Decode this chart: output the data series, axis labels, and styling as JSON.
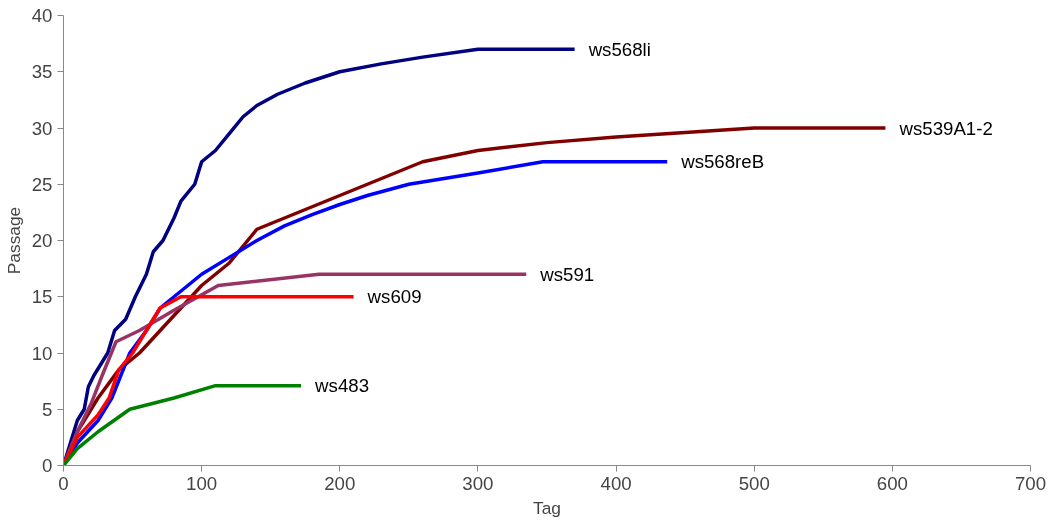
{
  "chart_data": {
    "type": "line",
    "xlabel": "Tag",
    "ylabel": "Passage",
    "xlim": [
      0,
      700
    ],
    "ylim": [
      0,
      40
    ],
    "xticks": [
      0,
      100,
      200,
      300,
      400,
      500,
      600,
      700
    ],
    "yticks": [
      0,
      5,
      10,
      15,
      20,
      25,
      30,
      35,
      40
    ],
    "grid": false,
    "legend": false,
    "marker": "none",
    "line_style": "solid",
    "series": [
      {
        "name": "ws568li",
        "color": "#000080",
        "x": [
          0,
          5,
          10,
          15,
          18,
          22,
          27,
          32,
          37,
          45,
          52,
          60,
          65,
          72,
          80,
          85,
          95,
          100,
          110,
          120,
          130,
          140,
          155,
          175,
          200,
          230,
          260,
          300,
          370
        ],
        "values": [
          0,
          2,
          4,
          5,
          7,
          8,
          9,
          10,
          12,
          13,
          15,
          17,
          19,
          20,
          22,
          23.5,
          25,
          27,
          28,
          29.5,
          31,
          32,
          33,
          34,
          35,
          35.7,
          36.3,
          37,
          37
        ]
      },
      {
        "name": "ws539A1-2",
        "color": "#800000",
        "x": [
          0,
          10,
          25,
          40,
          55,
          70,
          85,
          100,
          120,
          140,
          160,
          180,
          200,
          220,
          240,
          260,
          300,
          350,
          400,
          500,
          595
        ],
        "values": [
          0,
          3,
          6,
          8.5,
          10,
          12,
          14,
          16,
          18,
          21,
          22,
          23,
          24,
          25,
          26,
          27,
          28,
          28.7,
          29.2,
          30,
          30
        ]
      },
      {
        "name": "ws568reB",
        "color": "#0000ff",
        "x": [
          0,
          10,
          25,
          35,
          48,
          60,
          70,
          80,
          100,
          120,
          140,
          160,
          180,
          200,
          220,
          250,
          300,
          347,
          437
        ],
        "values": [
          0,
          2,
          4,
          6,
          10,
          12,
          14,
          15,
          17,
          18.5,
          20,
          21.3,
          22.3,
          23.2,
          24,
          25,
          26,
          27,
          27
        ]
      },
      {
        "name": "ws591",
        "color": "#993366",
        "x": [
          0,
          10,
          20,
          28,
          38,
          55,
          80,
          112,
          185,
          335
        ],
        "values": [
          0,
          3,
          5.5,
          8,
          11,
          12,
          13.8,
          16,
          17,
          17
        ]
      },
      {
        "name": "ws609",
        "color": "#ff0000",
        "x": [
          0,
          10,
          25,
          33,
          40,
          50,
          60,
          70,
          85,
          210
        ],
        "values": [
          0,
          2.5,
          4.5,
          6,
          8.5,
          10,
          12,
          14,
          15,
          15
        ]
      },
      {
        "name": "ws483",
        "color": "#008000",
        "x": [
          0,
          10,
          25,
          48,
          80,
          110,
          172
        ],
        "values": [
          0,
          1.5,
          3,
          5,
          6,
          7.1,
          7.1
        ]
      }
    ]
  }
}
